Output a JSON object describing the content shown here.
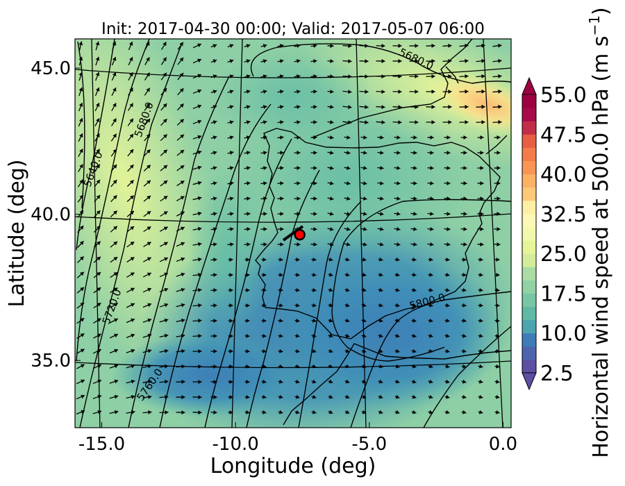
{
  "chart_data": {
    "type": "heatmap",
    "title": "Init: 2017-04-30 00:00; Valid: 2017-05-07 06:00",
    "xlabel": "Longitude (deg)",
    "ylabel": "Latitude (deg)",
    "colorbar_label": "Horizontal wind speed at 500.0 hPa (m s",
    "colorbar_label_sup": "−1",
    "colorbar_label_end": ")",
    "xlim": [
      -16.0,
      0.3
    ],
    "ylim": [
      32.7,
      46.0
    ],
    "x_ticks": [
      {
        "value": -15.0,
        "label": "-15.0"
      },
      {
        "value": -10.0,
        "label": "-10.0"
      },
      {
        "value": -5.0,
        "label": "-5.0"
      },
      {
        "value": 0.0,
        "label": "0.0"
      }
    ],
    "y_ticks": [
      {
        "value": 35.0,
        "label": "35.0"
      },
      {
        "value": 40.0,
        "label": "40.0"
      },
      {
        "value": 45.0,
        "label": "45.0"
      }
    ],
    "colorbar": {
      "min": 2.5,
      "max": 55.0,
      "step": 2.5,
      "extend": "both",
      "colormap": "Spectral_r",
      "tick_labels": [
        "2.5",
        "10.0",
        "17.5",
        "25.0",
        "32.5",
        "40.0",
        "47.5",
        "55.0"
      ],
      "colors": [
        "#5e4fa2",
        "#4d65ad",
        "#3e7bb7",
        "#3a92b7",
        "#4ba5b0",
        "#5fb9a4",
        "#78c6a4",
        "#91d2a4",
        "#aadca4",
        "#c0e5a0",
        "#d4ed9b",
        "#e6f598",
        "#f2f9ad",
        "#fcf8b5",
        "#feefa4",
        "#fee08b",
        "#fdc978",
        "#fdb164",
        "#f99655",
        "#f47b4a",
        "#e75e43",
        "#d8473f",
        "#c22e47",
        "#a80a4a",
        "#9e0142"
      ]
    },
    "contour_labels": [
      {
        "text": "5640.0",
        "lon": -15.2,
        "lat": 41.5
      },
      {
        "text": "5680.0",
        "lon": -13.3,
        "lat": 43.2
      },
      {
        "text": "5680.0",
        "lon": -3.3,
        "lat": 45.2
      },
      {
        "text": "5720.0",
        "lon": -14.5,
        "lat": 36.8
      },
      {
        "text": "5760.0",
        "lon": -13.1,
        "lat": 34.1
      },
      {
        "text": "5800.0",
        "lon": -2.8,
        "lat": 36.9
      }
    ],
    "marker": {
      "lon": -7.6,
      "lat": 39.3,
      "color": "#ff0000"
    }
  }
}
